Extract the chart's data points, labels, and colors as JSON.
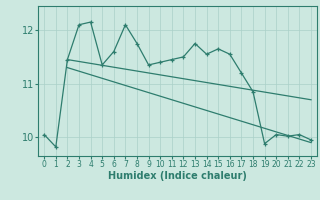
{
  "title": "",
  "xlabel": "Humidex (Indice chaleur)",
  "ylabel": "",
  "bg_color": "#cce8e0",
  "grid_color": "#aad0c8",
  "line_color": "#2e7d6e",
  "x_min": -0.5,
  "x_max": 23.5,
  "y_min": 9.65,
  "y_max": 12.45,
  "yticks": [
    10,
    11,
    12
  ],
  "xticks": [
    0,
    1,
    2,
    3,
    4,
    5,
    6,
    7,
    8,
    9,
    10,
    11,
    12,
    13,
    14,
    15,
    16,
    17,
    18,
    19,
    20,
    21,
    22,
    23
  ],
  "series1_x": [
    0,
    1,
    2,
    3,
    4,
    5,
    6,
    7,
    8,
    9,
    10,
    11,
    12,
    13,
    14,
    15,
    16,
    17,
    18,
    19,
    20,
    21,
    22,
    23
  ],
  "series1_y": [
    10.05,
    9.82,
    11.45,
    12.1,
    12.15,
    11.35,
    11.6,
    12.1,
    11.75,
    11.35,
    11.4,
    11.45,
    11.5,
    11.75,
    11.55,
    11.65,
    11.55,
    11.2,
    10.85,
    9.88,
    10.05,
    10.02,
    10.05,
    9.95
  ],
  "series2_x": [
    2,
    23
  ],
  "series2_y": [
    11.45,
    10.7
  ],
  "series3_x": [
    2,
    23
  ],
  "series3_y": [
    11.3,
    9.9
  ]
}
